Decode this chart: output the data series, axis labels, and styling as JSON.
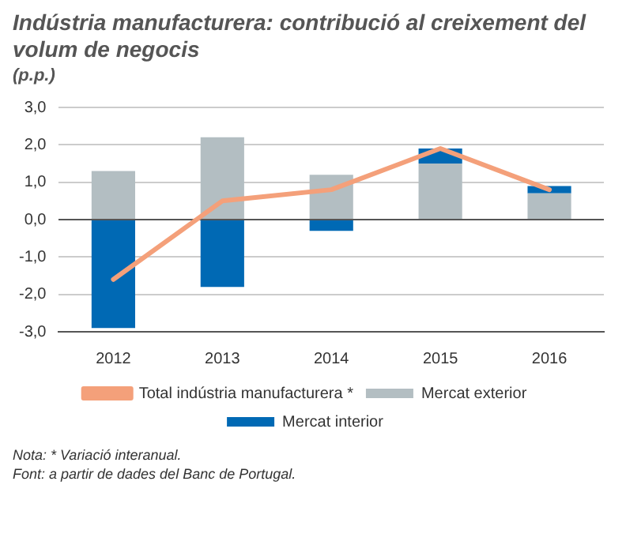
{
  "chart_data": {
    "type": "bar",
    "title": "Indústria manufacturera: contribució al creixement del volum de negocis",
    "ylabel": "(p.p.)",
    "categories": [
      "2012",
      "2013",
      "2014",
      "2015",
      "2016"
    ],
    "stacked": true,
    "series": [
      {
        "name": "Mercat exterior",
        "color": "#b3bec2",
        "values": [
          1.3,
          2.2,
          1.2,
          1.5,
          0.7
        ]
      },
      {
        "name": "Mercat interior",
        "color": "#0069b4",
        "values": [
          -2.9,
          -1.8,
          -0.3,
          0.4,
          0.2
        ]
      },
      {
        "name": "Total indústria manufacturera *",
        "type": "line",
        "color": "#f4a07a",
        "values": [
          -1.6,
          0.5,
          0.8,
          1.9,
          0.8
        ]
      }
    ],
    "ylim": [
      -3,
      3
    ],
    "yticks": [
      {
        "value": -3,
        "label": "-3,0"
      },
      {
        "value": -2,
        "label": "-2,0"
      },
      {
        "value": -1,
        "label": "-1,0"
      },
      {
        "value": 0,
        "label": "0,0"
      },
      {
        "value": 1,
        "label": "1,0"
      },
      {
        "value": 2,
        "label": "2,0"
      },
      {
        "value": 3,
        "label": "3,0"
      }
    ],
    "grid": "y",
    "legend": "bottom",
    "marker": "none",
    "annotations": [
      "Nota: * Variació interanual.",
      "Font: a partir de dades del Banc de Portugal."
    ]
  }
}
